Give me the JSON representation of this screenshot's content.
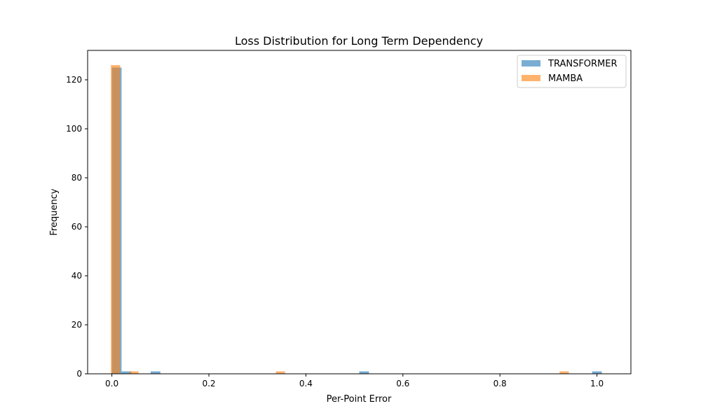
{
  "chart_data": {
    "type": "bar",
    "title": "Loss Distribution for Long Term Dependency",
    "xlabel": "Per-Point Error",
    "ylabel": "Frequency",
    "xlim": [
      -0.05,
      1.07
    ],
    "ylim": [
      0,
      132
    ],
    "xticks": [
      0.0,
      0.2,
      0.4,
      0.6,
      0.8,
      1.0
    ],
    "xtick_labels": [
      "0.0",
      "0.2",
      "0.4",
      "0.6",
      "0.8",
      "1.0"
    ],
    "yticks": [
      0,
      20,
      40,
      60,
      80,
      100,
      120
    ],
    "ytick_labels": [
      "0",
      "20",
      "40",
      "60",
      "80",
      "100",
      "120"
    ],
    "grid": false,
    "legend_position": "top-right",
    "series": [
      {
        "name": "TRANSFORMER",
        "color": "#1f77b4",
        "opacity": 0.6,
        "bin_width": 0.02,
        "bins": [
          {
            "x0": 0.0,
            "x1": 0.02,
            "count": 125
          },
          {
            "x0": 0.02,
            "x1": 0.04,
            "count": 1
          },
          {
            "x0": 0.08,
            "x1": 0.1,
            "count": 1
          },
          {
            "x0": 0.51,
            "x1": 0.53,
            "count": 1
          },
          {
            "x0": 0.99,
            "x1": 1.01,
            "count": 1
          }
        ]
      },
      {
        "name": "MAMBA",
        "color": "#ff7f0e",
        "opacity": 0.6,
        "bin_width": 0.019,
        "bins": [
          {
            "x0": -0.002,
            "x1": 0.017,
            "count": 126
          },
          {
            "x0": 0.036,
            "x1": 0.055,
            "count": 1
          },
          {
            "x0": 0.338,
            "x1": 0.357,
            "count": 1
          },
          {
            "x0": 0.923,
            "x1": 0.942,
            "count": 1
          }
        ]
      }
    ]
  }
}
